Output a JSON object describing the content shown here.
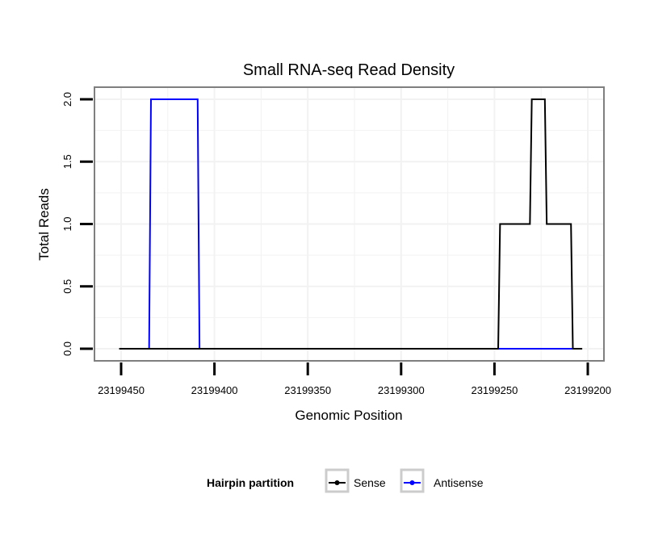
{
  "chart_data": {
    "type": "line",
    "title": "Small RNA-seq Read Density",
    "xlabel": "Genomic Position",
    "ylabel": "Total Reads",
    "xlim": [
      23199460,
      23199195
    ],
    "x_reversed": true,
    "ylim": [
      -0.1,
      2.1
    ],
    "xticks": [
      23199450,
      23199400,
      23199350,
      23199300,
      23199250,
      23199200
    ],
    "xtick_labels": [
      "23199450",
      "23199400",
      "23199350",
      "23199300",
      "23199250",
      "23199200"
    ],
    "yticks": [
      0,
      0.5,
      1,
      1.5,
      2
    ],
    "ytick_labels": [
      "0.0",
      "0.5",
      "1.0",
      "1.5",
      "2.0"
    ],
    "grid": true,
    "legend": {
      "title": "Hairpin partition",
      "placement": "bottom"
    },
    "series": [
      {
        "name": "Sense",
        "color": "#000000",
        "x": [
          23199451,
          23199248,
          23199247,
          23199231,
          23199230,
          23199223,
          23199222,
          23199209,
          23199208,
          23199203
        ],
        "y": [
          0,
          0,
          1,
          1,
          2,
          2,
          1,
          1,
          0,
          0
        ]
      },
      {
        "name": "Antisense",
        "color": "#0000ff",
        "x": [
          23199451,
          23199435,
          23199434,
          23199409,
          23199408,
          23199248,
          23199208,
          23199203
        ],
        "y": [
          0,
          0,
          2,
          2,
          0,
          0,
          0,
          0
        ]
      }
    ]
  }
}
